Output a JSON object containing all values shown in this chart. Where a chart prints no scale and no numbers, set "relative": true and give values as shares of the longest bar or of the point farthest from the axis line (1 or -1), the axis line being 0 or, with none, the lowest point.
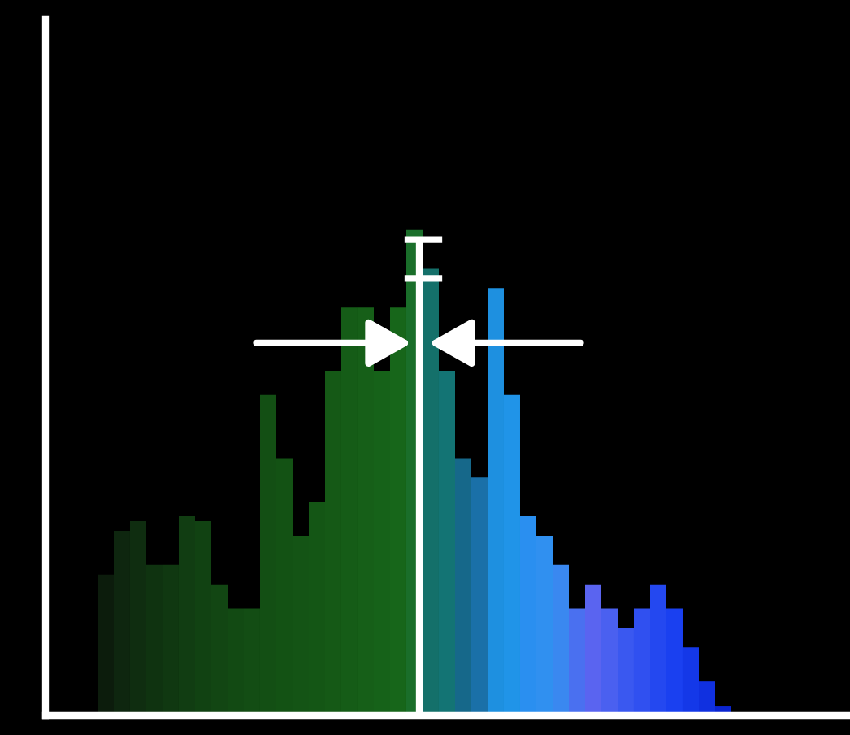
{
  "chart_data": {
    "type": "bar",
    "relative": true,
    "categories": [
      null,
      null,
      null,
      null,
      null,
      null,
      null,
      null,
      null,
      null,
      null,
      null,
      null,
      null,
      null,
      null,
      null,
      null,
      null,
      null,
      null,
      null,
      null,
      null,
      null,
      null,
      null,
      null,
      null,
      null,
      null,
      null,
      null,
      null,
      null,
      null,
      null,
      null,
      null
    ],
    "values": [
      0.29,
      0.38,
      0.4,
      0.31,
      0.31,
      0.41,
      0.4,
      0.27,
      0.22,
      0.22,
      0.66,
      0.53,
      0.37,
      0.44,
      0.71,
      0.84,
      0.84,
      0.71,
      0.84,
      1,
      0.92,
      0.71,
      0.53,
      0.49,
      0.88,
      0.66,
      0.41,
      0.37,
      0.31,
      0.22,
      0.27,
      0.22,
      0.18,
      0.22,
      0.27,
      0.22,
      0.14,
      0.07,
      0.02
    ],
    "colors": [
      "#0c1c0c",
      "#0e260f",
      "#0f2d10",
      "#0f3310",
      "#103811",
      "#113d12",
      "#114212",
      "#124613",
      "#124a13",
      "#134d14",
      "#134f14",
      "#135214",
      "#145415",
      "#145615",
      "#155916",
      "#155c17",
      "#165f18",
      "#166219",
      "#17661a",
      "#1a6e2a",
      "#14706a",
      "#137474",
      "#16688a",
      "#1a70a8",
      "#1e90e0",
      "#2094e8",
      "#2a8ff0",
      "#3090f0",
      "#3a88f0",
      "#4a70f0",
      "#5a64f0",
      "#4a60f0",
      "#3a58f0",
      "#3050f0",
      "#2448f0",
      "#1a40f0",
      "#1438e8",
      "#1030e0",
      "#0a24d0"
    ],
    "legend": false
  }
}
